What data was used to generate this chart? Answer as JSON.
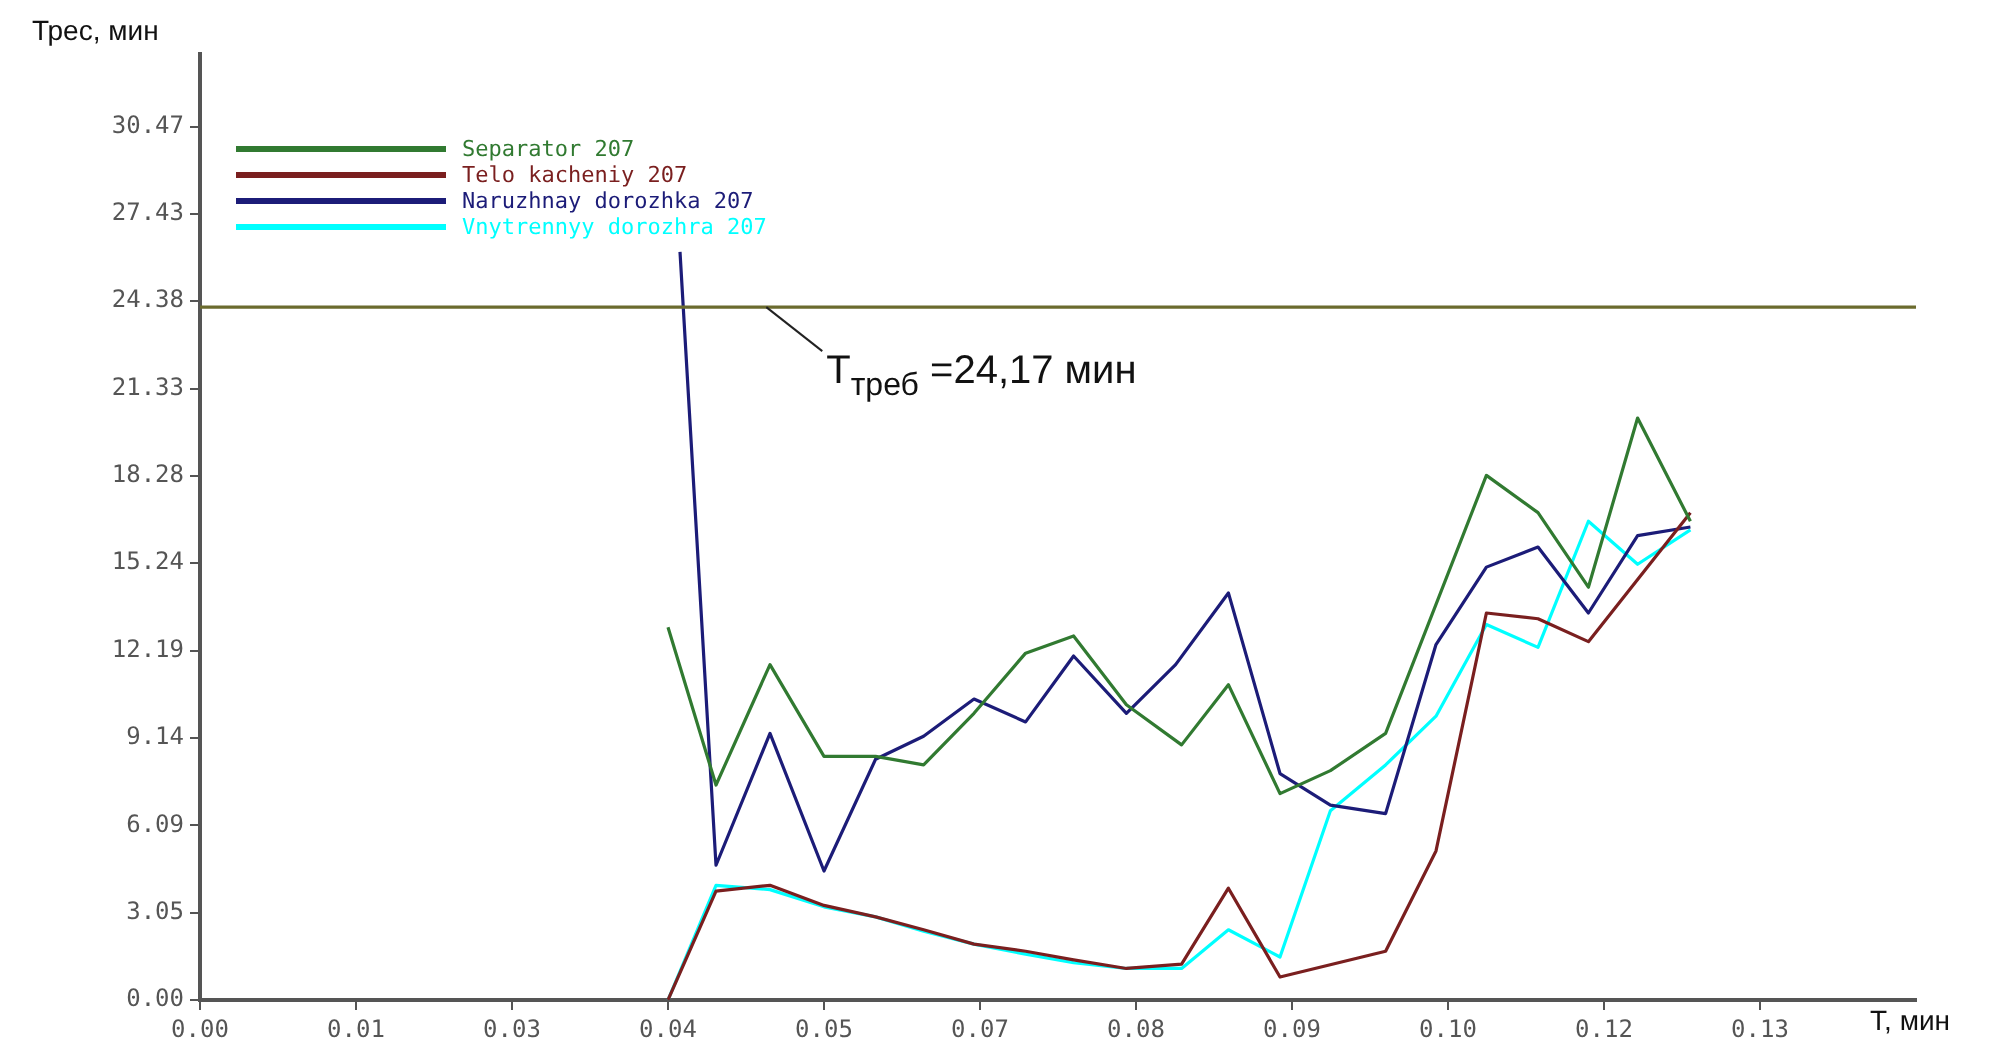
{
  "chart_data": {
    "type": "line",
    "xlabel": "T, мин",
    "ylabel": "Трес, мин",
    "xlim": [
      0,
      0.143
    ],
    "ylim": [
      0,
      33
    ],
    "xticks": [
      {
        "value": 0,
        "label": "0.00"
      },
      {
        "value": 0.013,
        "label": "0.01"
      },
      {
        "value": 0.026,
        "label": "0.03"
      },
      {
        "value": 0.039,
        "label": "0.04"
      },
      {
        "value": 0.052,
        "label": "0.05"
      },
      {
        "value": 0.065,
        "label": "0.07"
      },
      {
        "value": 0.078,
        "label": "0.08"
      },
      {
        "value": 0.091,
        "label": "0.09"
      },
      {
        "value": 0.104,
        "label": "0.10"
      },
      {
        "value": 0.117,
        "label": "0.12"
      },
      {
        "value": 0.13,
        "label": "0.13"
      }
    ],
    "yticks": [
      {
        "value": 0,
        "label": "0.00"
      },
      {
        "value": 3.05,
        "label": "3.05"
      },
      {
        "value": 6.09,
        "label": "6.09"
      },
      {
        "value": 9.14,
        "label": "9.14"
      },
      {
        "value": 12.19,
        "label": "12.19"
      },
      {
        "value": 15.24,
        "label": "15.24"
      },
      {
        "value": 18.28,
        "label": "18.28"
      },
      {
        "value": 21.33,
        "label": "21.33"
      },
      {
        "value": 24.38,
        "label": "24.38"
      },
      {
        "value": 27.43,
        "label": "27.43"
      },
      {
        "value": 30.47,
        "label": "30.47"
      }
    ],
    "grid": false,
    "legend": "top left",
    "marker": "none",
    "line_style": "solid",
    "ref_lines": [
      {
        "axis": "y",
        "value": 24.17,
        "label": "T$_{треб}$ =24,17 мин",
        "color": "#6b6b2e"
      }
    ],
    "series": [
      {
        "name": "Separator 207",
        "color": "#317a31",
        "x": [
          0.039,
          0.043,
          0.0475,
          0.052,
          0.0563,
          0.0603,
          0.0645,
          0.0688,
          0.0728,
          0.0772,
          0.0818,
          0.0857,
          0.09,
          0.0942,
          0.0988,
          0.1072,
          0.1115,
          0.1157,
          0.1198,
          0.1242
        ],
        "values": [
          13.0,
          7.5,
          11.7,
          8.5,
          8.5,
          8.2,
          10.0,
          12.1,
          12.7,
          10.3,
          8.9,
          11.0,
          7.2,
          8.0,
          9.3,
          18.3,
          17.0,
          14.4,
          20.3,
          16.7
        ]
      },
      {
        "name": "Telo kacheniy 207",
        "color": "#7a1f1f",
        "x": [
          0.039,
          0.043,
          0.0475,
          0.052,
          0.0563,
          0.0603,
          0.0645,
          0.0688,
          0.0728,
          0.0772,
          0.0818,
          0.0857,
          0.09,
          0.0988,
          0.103,
          0.1072,
          0.1115,
          0.1157,
          0.1242
        ],
        "values": [
          0,
          3.8,
          4.0,
          3.3,
          2.9,
          2.45,
          1.95,
          1.7,
          1.4,
          1.1,
          1.25,
          3.9,
          0.8,
          1.7,
          5.2,
          13.5,
          13.3,
          12.5,
          17.0
        ]
      },
      {
        "name": "Naruzhnay dorozhka 207",
        "color": "#1c1c78",
        "x": [
          0.04,
          0.043,
          0.0475,
          0.052,
          0.0563,
          0.0603,
          0.0645,
          0.0688,
          0.0728,
          0.0772,
          0.0813,
          0.0857,
          0.09,
          0.0942,
          0.0988,
          0.103,
          0.1072,
          0.1115,
          0.1157,
          0.1198,
          0.1242
        ],
        "values": [
          26.1,
          4.7,
          9.3,
          4.5,
          8.4,
          9.2,
          10.5,
          9.7,
          12.0,
          10.0,
          11.7,
          14.2,
          7.9,
          6.8,
          6.5,
          12.4,
          15.1,
          15.8,
          13.5,
          16.2,
          16.5
        ]
      },
      {
        "name": "Vnytrennyy dorozhra 207",
        "color": "#00ffff",
        "x": [
          0.039,
          0.043,
          0.0475,
          0.052,
          0.0563,
          0.0603,
          0.0645,
          0.0688,
          0.0728,
          0.0772,
          0.0818,
          0.0857,
          0.09,
          0.0942,
          0.0988,
          0.103,
          0.1072,
          0.1115,
          0.1157,
          0.1198,
          0.1242
        ],
        "values": [
          0,
          4.0,
          3.85,
          3.25,
          2.9,
          2.4,
          1.95,
          1.6,
          1.3,
          1.1,
          1.1,
          2.45,
          1.5,
          6.6,
          8.2,
          9.9,
          13.1,
          12.3,
          16.7,
          15.2,
          16.4
        ]
      }
    ]
  }
}
